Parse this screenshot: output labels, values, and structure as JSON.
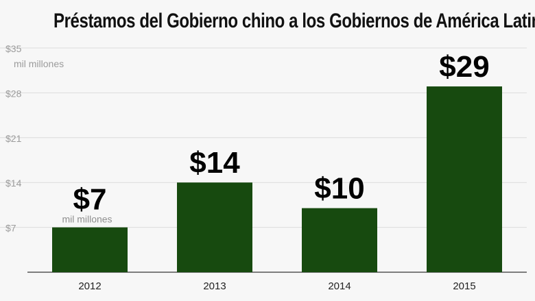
{
  "chart_data": {
    "type": "bar",
    "title": "Préstamos del Gobierno chino a los Gobiernos de América Latina",
    "y_unit": "mil millones",
    "bar_unit_label": "mil millones",
    "categories": [
      "2012",
      "2013",
      "2014",
      "2015"
    ],
    "values": [
      7,
      14,
      10,
      29
    ],
    "value_labels": [
      "$7",
      "$14",
      "$10",
      "$29"
    ],
    "y_ticks": [
      7,
      14,
      21,
      28,
      35
    ],
    "y_tick_labels": [
      "$7",
      "$14",
      "$21",
      "$28",
      "$35"
    ],
    "ylim": [
      0,
      35
    ],
    "grid": true,
    "bar_color": "#174a0f"
  }
}
